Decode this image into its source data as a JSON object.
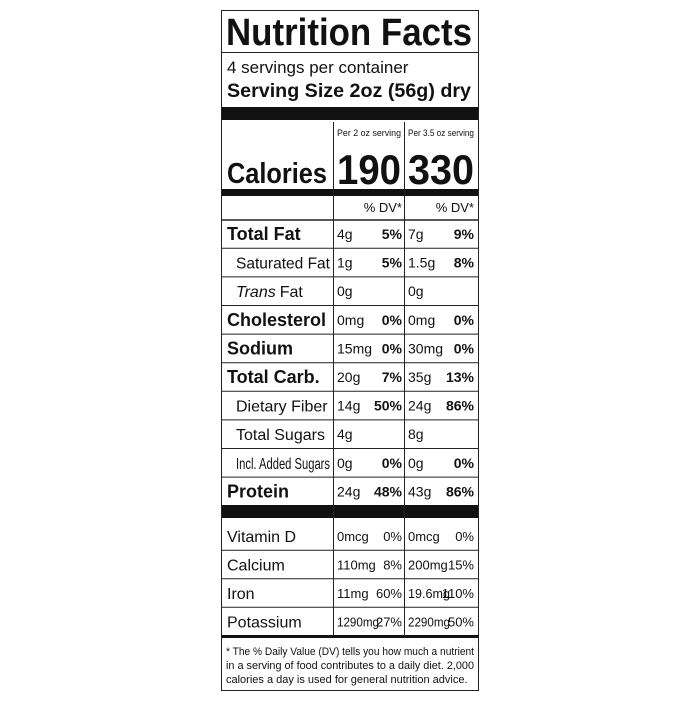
{
  "title": "Nutrition Facts",
  "servings": "4 servings per container",
  "serving_size": "Serving Size 2oz (56g) dry",
  "columns": [
    "Per 2 oz serving",
    "Per 3.5 oz serving"
  ],
  "calories": {
    "label": "Calories",
    "values": [
      "190",
      "330"
    ]
  },
  "dv_header": [
    "% DV*",
    "% DV*"
  ],
  "nutrients": [
    {
      "name": "Total Fat",
      "bold": true,
      "indent": false,
      "amounts": [
        "4g",
        "7g"
      ],
      "dv": [
        "5%",
        "9%"
      ]
    },
    {
      "name": "Saturated Fat",
      "bold": false,
      "indent": true,
      "amounts": [
        "1g",
        "1.5g"
      ],
      "dv": [
        "5%",
        "8%"
      ]
    },
    {
      "name_italic": "Trans",
      "name": "Fat",
      "bold": false,
      "indent": true,
      "amounts": [
        "0g",
        "0g"
      ]
    },
    {
      "name": "Cholesterol",
      "bold": true,
      "indent": false,
      "amounts": [
        "0mg",
        "0mg"
      ],
      "dv": [
        "0%",
        "0%"
      ]
    },
    {
      "name": "Sodium",
      "bold": true,
      "indent": false,
      "amounts": [
        "15mg",
        "30mg"
      ],
      "dv": [
        "0%",
        "0%"
      ]
    },
    {
      "name": "Total Carb.",
      "bold": true,
      "indent": false,
      "amounts": [
        "20g",
        "35g"
      ],
      "dv": [
        "7%",
        "13%"
      ]
    },
    {
      "name": "Dietary Fiber",
      "bold": false,
      "indent": true,
      "amounts": [
        "14g",
        "24g"
      ],
      "dv": [
        "50%",
        "86%"
      ]
    },
    {
      "name": "Total Sugars",
      "bold": false,
      "indent": true,
      "amounts": [
        "4g",
        "8g"
      ]
    },
    {
      "name": "Incl. Added Sugars",
      "bold": false,
      "indent": true,
      "amounts": [
        "0g",
        "0g"
      ],
      "dv": [
        "0%",
        "0%"
      ]
    },
    {
      "name": "Protein",
      "bold": true,
      "indent": false,
      "amounts": [
        "24g",
        "43g"
      ],
      "dv": [
        "48%",
        "86%"
      ]
    }
  ],
  "vitamins": [
    {
      "name": "Vitamin D",
      "amounts": [
        "0mcg",
        "0mcg"
      ],
      "dv": [
        "0%",
        "0%"
      ]
    },
    {
      "name": "Calcium",
      "amounts": [
        "110mg",
        "200mg"
      ],
      "dv": [
        "8%",
        "15%"
      ]
    },
    {
      "name": "Iron",
      "amounts": [
        "11mg",
        "19.6mg"
      ],
      "dv": [
        "60%",
        "110%"
      ]
    },
    {
      "name": "Potassium",
      "amounts": [
        "1290mg",
        "2290mg"
      ],
      "dv": [
        "27%",
        "50%"
      ]
    }
  ],
  "footnote": [
    "* The % Daily Value (DV) tells you how much a nutrient",
    "in a serving of food contributes to a daily diet. 2,000",
    "calories a day is used for general nutrition advice."
  ]
}
